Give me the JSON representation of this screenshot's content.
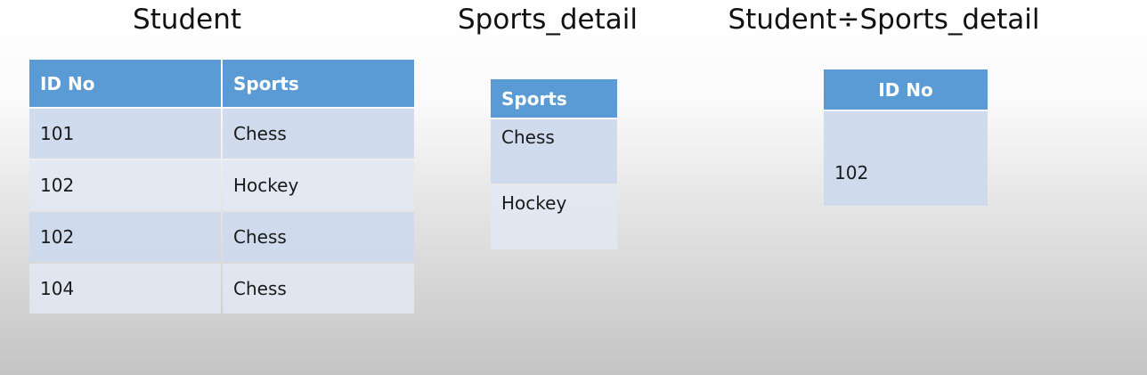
{
  "student": {
    "title": "Student",
    "columns": [
      "ID No",
      "Sports"
    ],
    "rows": [
      [
        "101",
        "Chess"
      ],
      [
        "102",
        "Hockey"
      ],
      [
        "102",
        "Chess"
      ],
      [
        "104",
        "Chess"
      ]
    ]
  },
  "sports_detail": {
    "title": "Sports_detail",
    "columns": [
      "Sports"
    ],
    "rows": [
      [
        "Chess"
      ],
      [
        "Hockey"
      ]
    ]
  },
  "result": {
    "title": "Student÷Sports_detail",
    "columns": [
      "ID No"
    ],
    "rows": [
      [
        "102"
      ]
    ]
  },
  "colors": {
    "header": "#5b9bd5",
    "row_dark": "#cdd9ec",
    "row_light": "#e2e9f3"
  }
}
